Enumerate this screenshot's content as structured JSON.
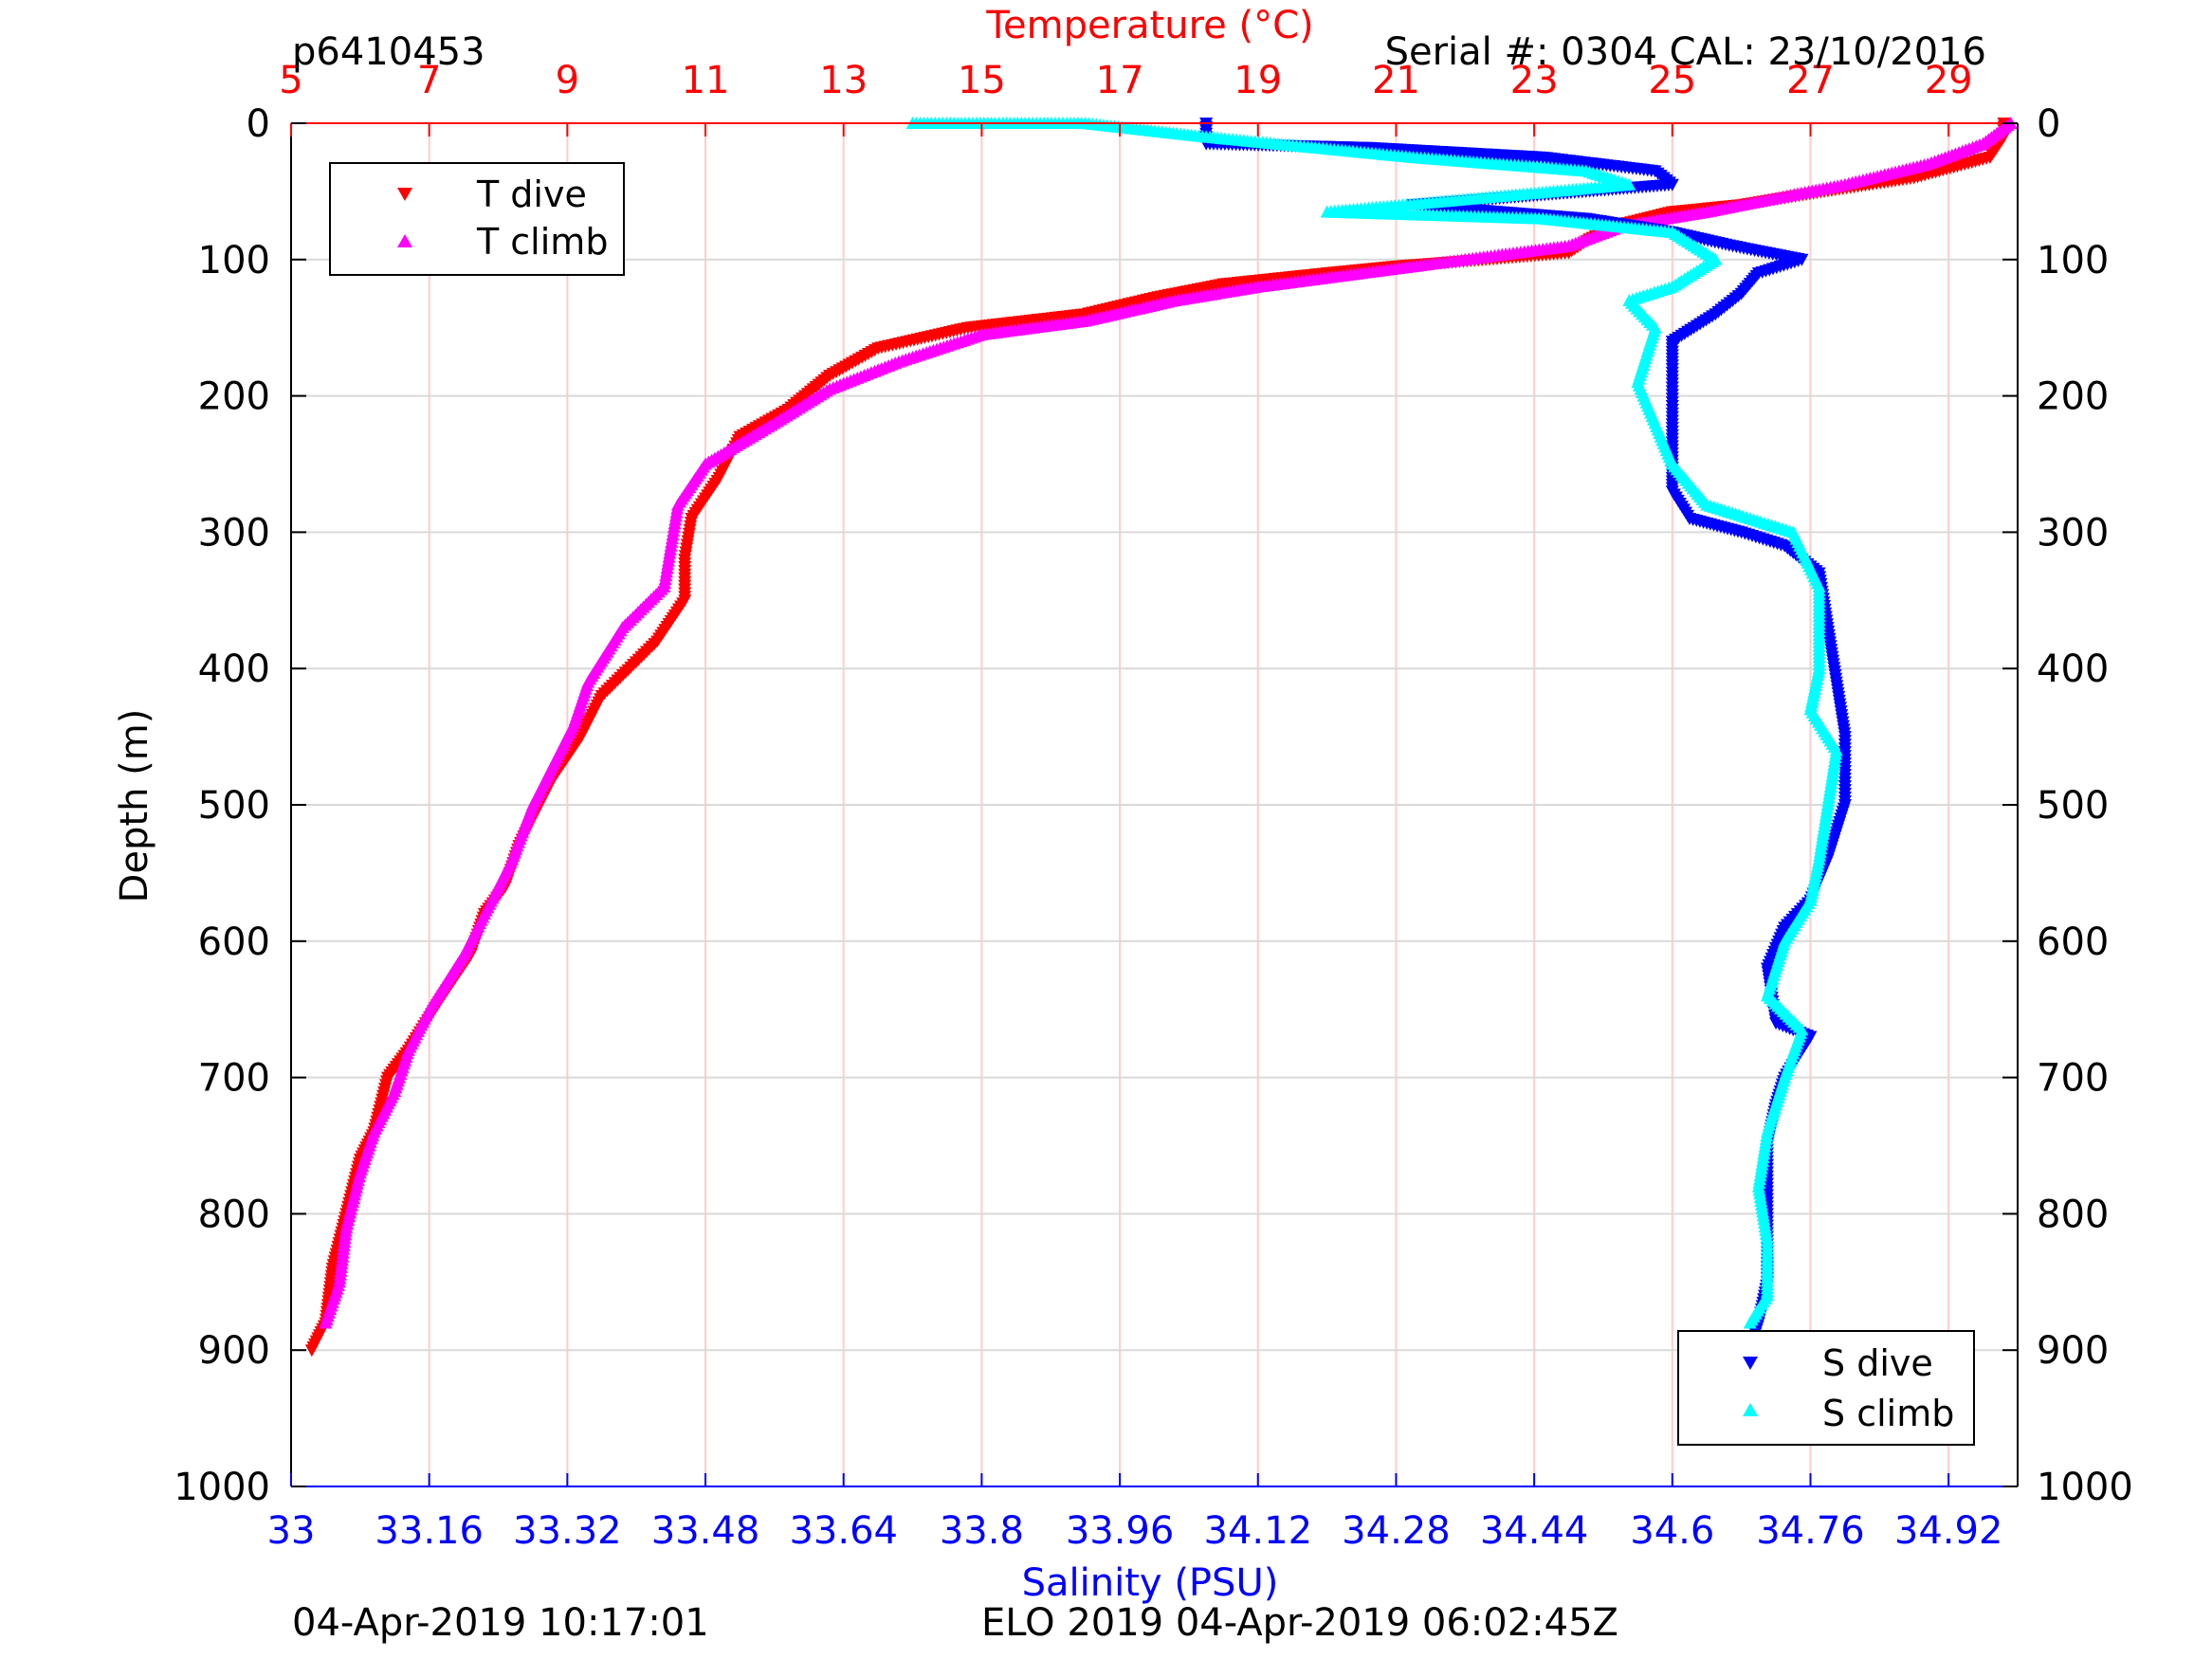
{
  "header": {
    "profile_id": "p6410453",
    "serial_cal": "Serial #: 0304  CAL: 23/10/2016"
  },
  "footer": {
    "left_timestamp": "04-Apr-2019 10:17:01",
    "center_text": "ELO 2019 04-Apr-2019 06:02:45Z"
  },
  "colors": {
    "t_dive": "#ff0000",
    "t_climb": "#ff00ff",
    "s_dive": "#0000ff",
    "s_climb": "#00ffff",
    "temp_axis": "#ff0000",
    "sal_axis": "#0000ff",
    "temp_grid": "#ffcccc",
    "depth_grid": "#d9d9d9",
    "frame": "#000000"
  },
  "chart_data": {
    "type": "scatter",
    "title": "",
    "ylabel": "Depth (m)",
    "ylim": [
      0,
      1000
    ],
    "y_ticks": [
      "0",
      "100",
      "200",
      "300",
      "400",
      "500",
      "600",
      "700",
      "800",
      "900",
      "1000"
    ],
    "y_inverted": true,
    "grid": true,
    "x_top": {
      "label": "Temperature (°C)",
      "lim": [
        5,
        30
      ],
      "ticks": [
        "5",
        "7",
        "9",
        "11",
        "13",
        "15",
        "17",
        "19",
        "21",
        "23",
        "25",
        "27",
        "29"
      ],
      "tick_values": [
        5,
        7,
        9,
        11,
        13,
        15,
        17,
        19,
        21,
        23,
        25,
        27,
        29
      ]
    },
    "x_bottom": {
      "label": "Salinity (PSU)",
      "lim": [
        33,
        35
      ],
      "ticks": [
        "33",
        "33.16",
        "33.32",
        "33.48",
        "33.64",
        "33.8",
        "33.96",
        "34.12",
        "34.28",
        "34.44",
        "34.6",
        "34.76",
        "34.92"
      ],
      "tick_values": [
        33,
        33.16,
        33.32,
        33.48,
        33.64,
        33.8,
        33.96,
        34.12,
        34.28,
        34.44,
        34.6,
        34.76,
        34.92
      ]
    },
    "legends": [
      {
        "placement": "top-left",
        "entries": [
          "T dive",
          "T climb"
        ]
      },
      {
        "placement": "bottom-right",
        "entries": [
          "S dive",
          "S climb"
        ]
      }
    ],
    "series": [
      {
        "name": "T dive",
        "axis": "temperature",
        "marker": "triangle-down",
        "points": [
          [
            29.8,
            0
          ],
          [
            29.8,
            10
          ],
          [
            29.6,
            25
          ],
          [
            28.5,
            40
          ],
          [
            27.2,
            50
          ],
          [
            26,
            60
          ],
          [
            25,
            65
          ],
          [
            24.2,
            75
          ],
          [
            23.8,
            85
          ],
          [
            23.5,
            95
          ],
          [
            22.3,
            100
          ],
          [
            21,
            105
          ],
          [
            20,
            110
          ],
          [
            18.5,
            118
          ],
          [
            17.5,
            128
          ],
          [
            16.5,
            140
          ],
          [
            14.8,
            150
          ],
          [
            13.5,
            165
          ],
          [
            12.8,
            185
          ],
          [
            12.2,
            210
          ],
          [
            11.5,
            230
          ],
          [
            11.2,
            260
          ],
          [
            10.8,
            290
          ],
          [
            10.7,
            320
          ],
          [
            10.7,
            350
          ],
          [
            10.3,
            380
          ],
          [
            9.5,
            420
          ],
          [
            9.2,
            450
          ],
          [
            8.8,
            480
          ],
          [
            8.6,
            500
          ],
          [
            8.3,
            530
          ],
          [
            8.1,
            560
          ],
          [
            7.8,
            580
          ],
          [
            7.6,
            610
          ],
          [
            7.2,
            640
          ],
          [
            6.7,
            680
          ],
          [
            6.4,
            700
          ],
          [
            6.2,
            740
          ],
          [
            6.0,
            760
          ],
          [
            5.8,
            800
          ],
          [
            5.6,
            840
          ],
          [
            5.5,
            880
          ],
          [
            5.3,
            900
          ]
        ]
      },
      {
        "name": "T climb",
        "axis": "temperature",
        "marker": "triangle-up",
        "points": [
          [
            29.9,
            0
          ],
          [
            29.5,
            15
          ],
          [
            28.7,
            30
          ],
          [
            27.5,
            45
          ],
          [
            26.5,
            55
          ],
          [
            25.5,
            65
          ],
          [
            24.3,
            75
          ],
          [
            23.5,
            90
          ],
          [
            22.0,
            100
          ],
          [
            20.5,
            110
          ],
          [
            19.0,
            120
          ],
          [
            17.8,
            130
          ],
          [
            16.5,
            145
          ],
          [
            15.0,
            155
          ],
          [
            13.8,
            175
          ],
          [
            12.8,
            195
          ],
          [
            12.0,
            220
          ],
          [
            11.0,
            250
          ],
          [
            10.6,
            280
          ],
          [
            10.5,
            310
          ],
          [
            10.4,
            340
          ],
          [
            9.8,
            370
          ],
          [
            9.3,
            410
          ],
          [
            9.1,
            440
          ],
          [
            8.8,
            470
          ],
          [
            8.5,
            500
          ],
          [
            8.2,
            540
          ],
          [
            7.8,
            580
          ],
          [
            7.5,
            610
          ],
          [
            7.0,
            650
          ],
          [
            6.7,
            680
          ],
          [
            6.5,
            710
          ],
          [
            6.2,
            740
          ],
          [
            6.0,
            770
          ],
          [
            5.8,
            810
          ],
          [
            5.7,
            850
          ],
          [
            5.5,
            880
          ]
        ]
      },
      {
        "name": "S dive",
        "axis": "salinity",
        "marker": "triangle-down",
        "points": [
          [
            34.06,
            0
          ],
          [
            34.06,
            15
          ],
          [
            34.25,
            18
          ],
          [
            34.45,
            25
          ],
          [
            34.58,
            35
          ],
          [
            34.6,
            45
          ],
          [
            34.3,
            60
          ],
          [
            34.5,
            70
          ],
          [
            34.6,
            80
          ],
          [
            34.67,
            90
          ],
          [
            34.75,
            100
          ],
          [
            34.7,
            110
          ],
          [
            34.68,
            125
          ],
          [
            34.65,
            140
          ],
          [
            34.6,
            160
          ],
          [
            34.6,
            180
          ],
          [
            34.6,
            210
          ],
          [
            34.6,
            250
          ],
          [
            34.6,
            270
          ],
          [
            34.62,
            290
          ],
          [
            34.68,
            300
          ],
          [
            34.73,
            310
          ],
          [
            34.77,
            330
          ],
          [
            34.78,
            370
          ],
          [
            34.79,
            410
          ],
          [
            34.8,
            450
          ],
          [
            34.8,
            500
          ],
          [
            34.78,
            540
          ],
          [
            34.76,
            570
          ],
          [
            34.73,
            590
          ],
          [
            34.71,
            620
          ],
          [
            34.72,
            660
          ],
          [
            34.76,
            670
          ],
          [
            34.73,
            700
          ],
          [
            34.72,
            720
          ],
          [
            34.71,
            750
          ],
          [
            34.71,
            800
          ],
          [
            34.71,
            850
          ],
          [
            34.7,
            880
          ],
          [
            34.69,
            900
          ]
        ]
      },
      {
        "name": "S climb",
        "axis": "salinity",
        "marker": "triangle-up",
        "points": [
          [
            33.72,
            0
          ],
          [
            33.92,
            0
          ],
          [
            34.06,
            10
          ],
          [
            34.3,
            25
          ],
          [
            34.5,
            35
          ],
          [
            34.55,
            45
          ],
          [
            34.2,
            65
          ],
          [
            34.45,
            70
          ],
          [
            34.6,
            80
          ],
          [
            34.65,
            100
          ],
          [
            34.6,
            120
          ],
          [
            34.55,
            130
          ],
          [
            34.58,
            150
          ],
          [
            34.56,
            190
          ],
          [
            34.58,
            220
          ],
          [
            34.6,
            250
          ],
          [
            34.64,
            280
          ],
          [
            34.74,
            300
          ],
          [
            34.77,
            340
          ],
          [
            34.77,
            400
          ],
          [
            34.76,
            430
          ],
          [
            34.79,
            460
          ],
          [
            34.78,
            500
          ],
          [
            34.77,
            540
          ],
          [
            34.76,
            570
          ],
          [
            34.73,
            600
          ],
          [
            34.71,
            640
          ],
          [
            34.75,
            665
          ],
          [
            34.73,
            700
          ],
          [
            34.71,
            740
          ],
          [
            34.7,
            780
          ],
          [
            34.71,
            820
          ],
          [
            34.71,
            860
          ],
          [
            34.69,
            880
          ]
        ]
      }
    ]
  }
}
